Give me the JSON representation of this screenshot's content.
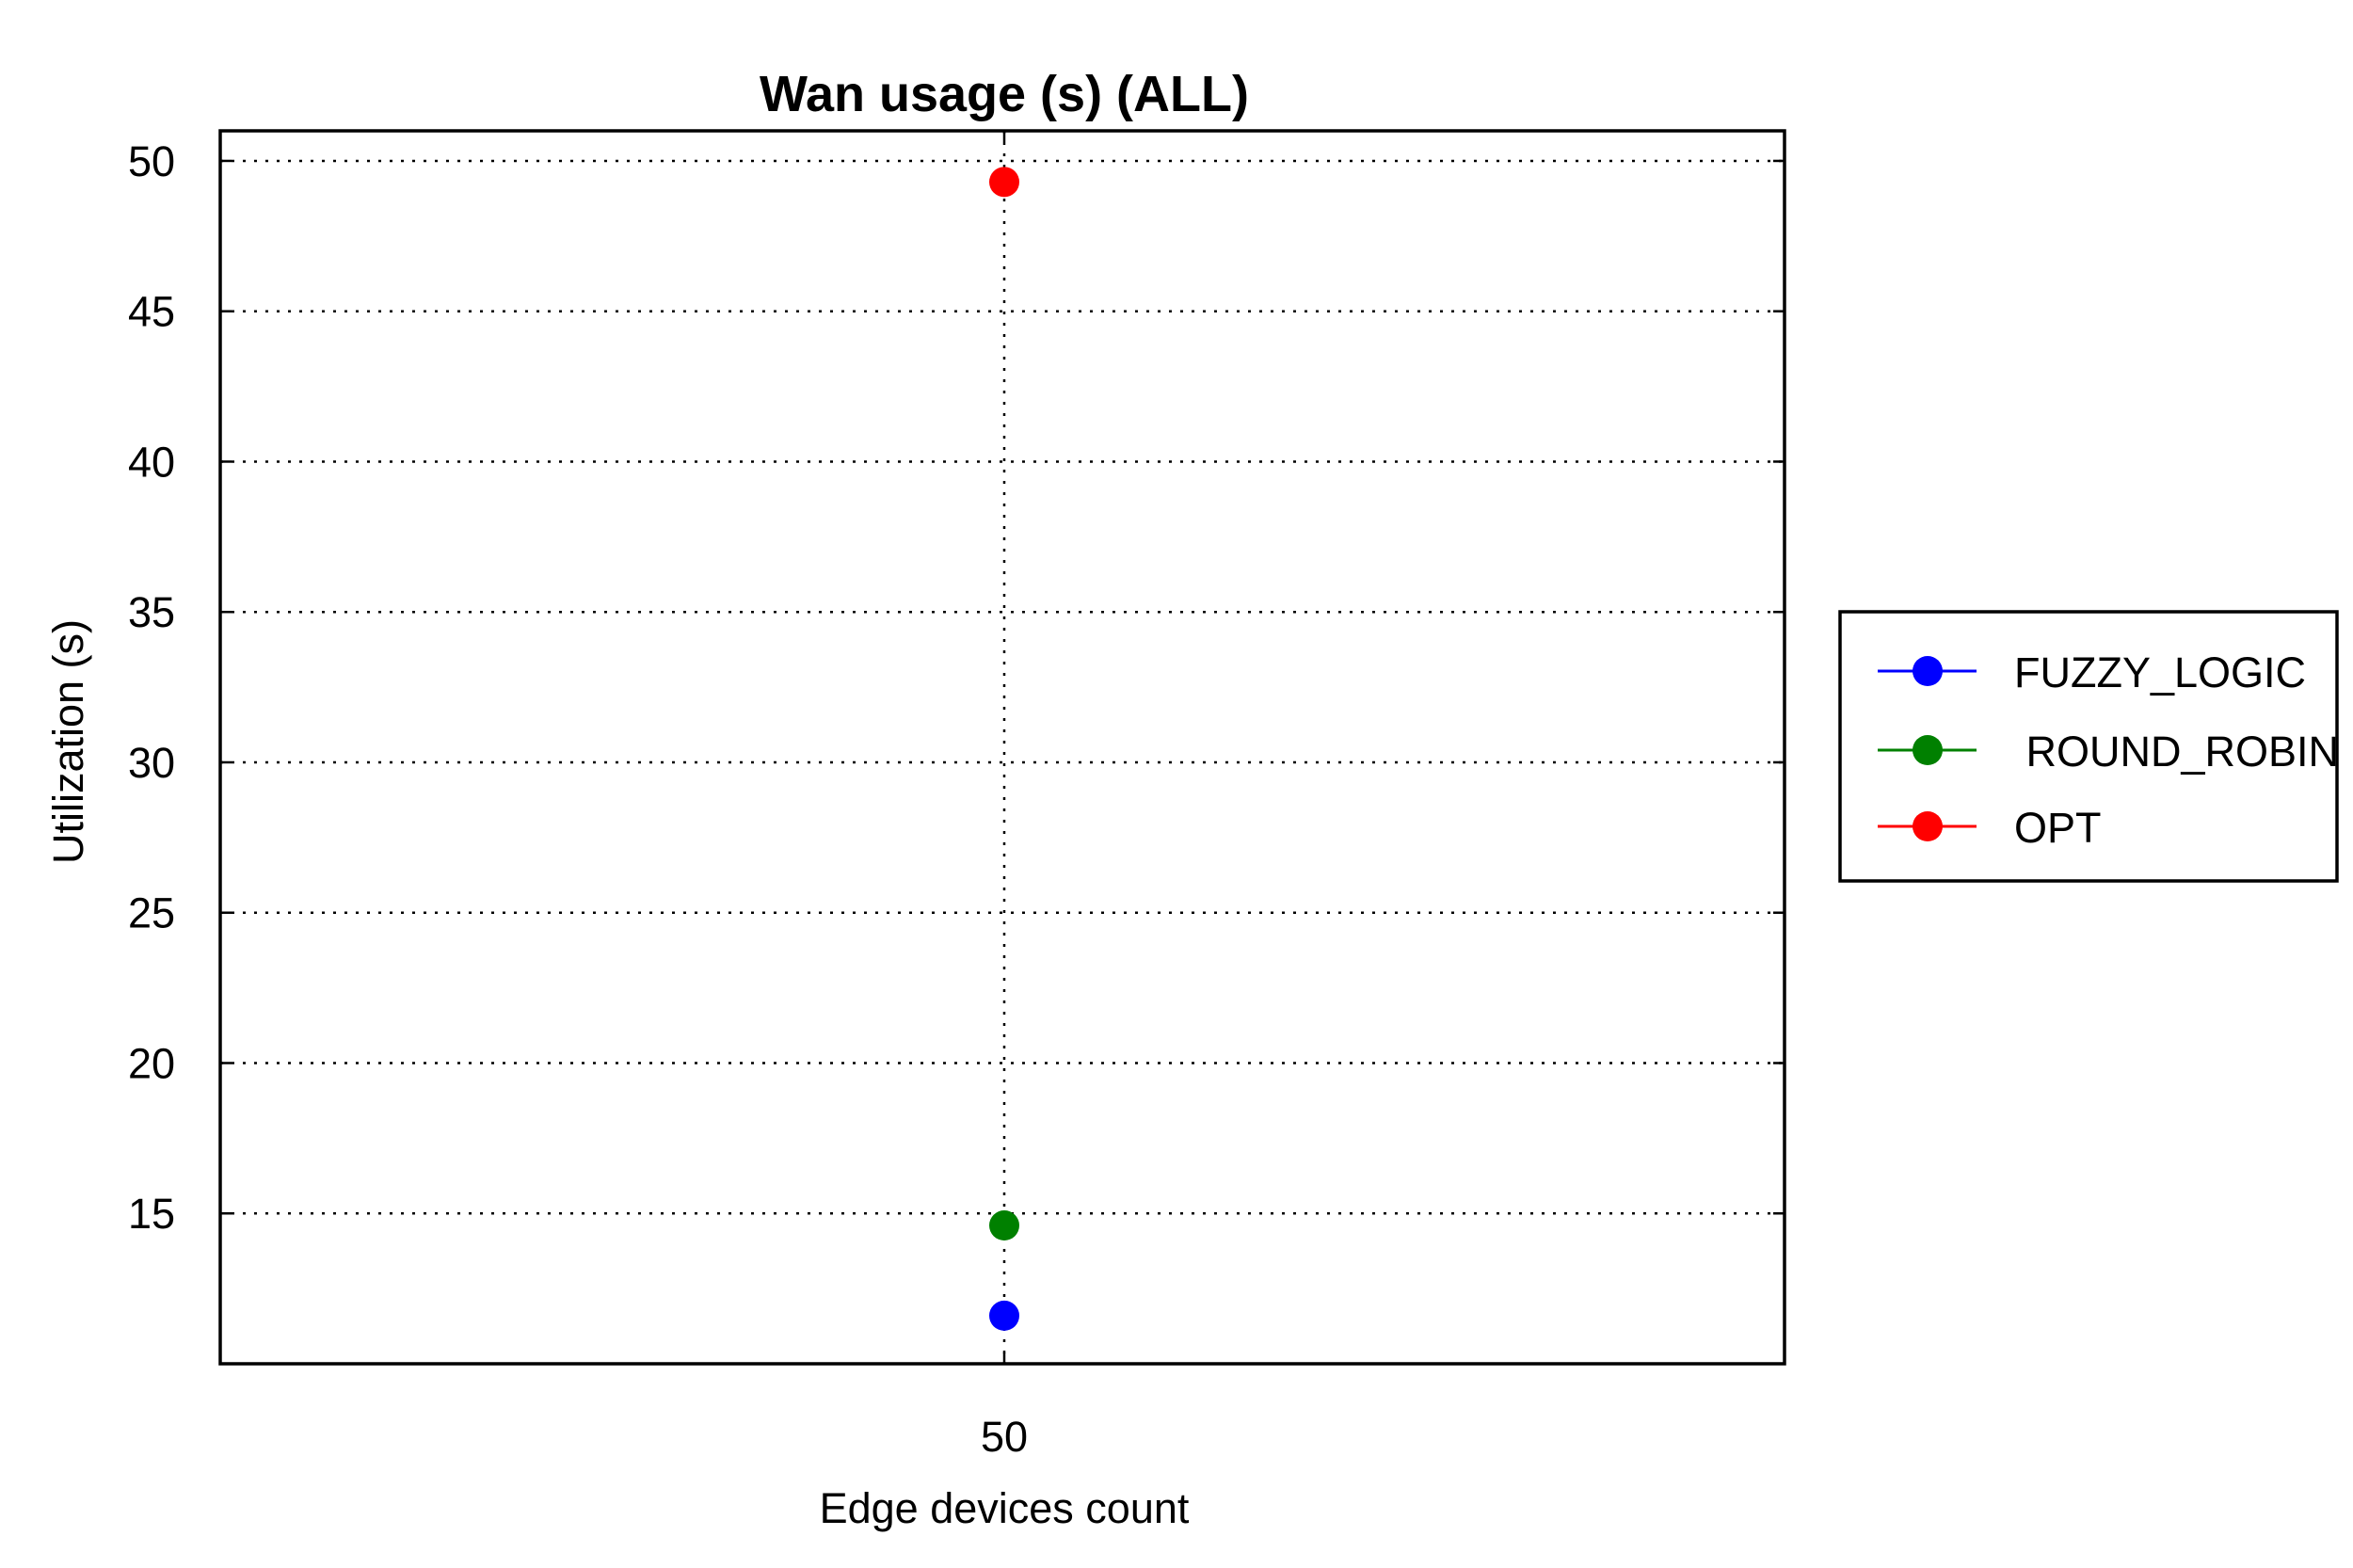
{
  "chart_data": {
    "type": "scatter",
    "title": "Wan usage (s) (ALL)",
    "xlabel": "Edge devices count",
    "ylabel": "Utilization (s)",
    "x": [
      50
    ],
    "x_tick_labels": [
      "50"
    ],
    "ylim": [
      10,
      51
    ],
    "y_ticks": [
      15,
      20,
      25,
      30,
      35,
      40,
      45,
      50
    ],
    "grid": true,
    "legend_position": "right",
    "series": [
      {
        "name": "FUZZY_LOGIC",
        "color": "#0000ff",
        "values": [
          11.6
        ]
      },
      {
        "name": " ROUND_ROBIN",
        "color": "#008000",
        "values": [
          14.6
        ]
      },
      {
        "name": "OPT",
        "color": "#ff0000",
        "values": [
          49.3
        ]
      }
    ]
  }
}
